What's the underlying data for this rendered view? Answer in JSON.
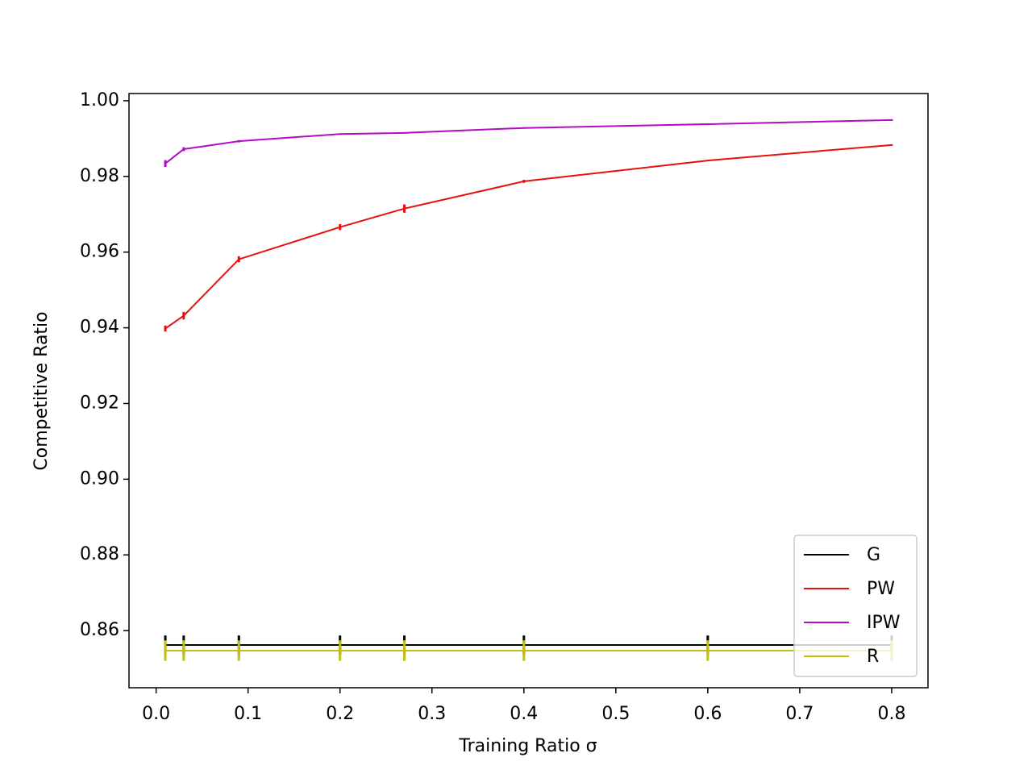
{
  "chart_data": {
    "type": "line",
    "x_label": "Training Ratio σ",
    "y_label": "Competitive Ratio",
    "x": [
      0.01,
      0.03,
      0.09,
      0.2,
      0.27,
      0.4,
      0.6,
      0.8
    ],
    "series": [
      {
        "name": "G",
        "color": "#000000",
        "values": [
          0.8562,
          0.8562,
          0.8562,
          0.8562,
          0.8562,
          0.8562,
          0.8562,
          0.8562
        ],
        "errors": [
          0.0025,
          0.0025,
          0.0025,
          0.0025,
          0.0025,
          0.0025,
          0.0025,
          0.0025
        ]
      },
      {
        "name": "PW",
        "color": "#e8100f",
        "values": [
          0.9398,
          0.9432,
          0.9581,
          0.9666,
          0.9715,
          0.9787,
          0.9842,
          0.9883
        ],
        "errors": [
          0.0008,
          0.001,
          0.0008,
          0.0008,
          0.0011,
          0.0004,
          0.0002,
          0.0002
        ]
      },
      {
        "name": "IPW",
        "color": "#b20cc8",
        "values": [
          0.9834,
          0.9872,
          0.9893,
          0.9912,
          0.9915,
          0.9928,
          0.9938,
          0.9949
        ],
        "errors": [
          0.0009,
          0.0005,
          0.0003,
          0.0002,
          0.0002,
          0.0002,
          0.0002,
          0.0002
        ]
      },
      {
        "name": "R",
        "color": "#c2c00f",
        "values": [
          0.8547,
          0.8547,
          0.8547,
          0.8547,
          0.8547,
          0.8547,
          0.8547,
          0.8547
        ],
        "errors": [
          0.0027,
          0.0027,
          0.0027,
          0.0027,
          0.0027,
          0.0027,
          0.0027,
          0.0027
        ]
      }
    ],
    "xlim": [
      -0.0295,
      0.8395
    ],
    "ylim": [
      0.8449,
      1.0019
    ],
    "xticks": [
      {
        "value": 0,
        "label": "0.0"
      },
      0.1,
      0.2,
      0.3,
      0.4,
      0.5,
      0.6,
      0.7,
      0.8
    ],
    "yticks": [
      0.86,
      0.88,
      {
        "value": 0.9,
        "label": "0.90"
      },
      0.92,
      0.94,
      0.96,
      0.98,
      {
        "value": 1,
        "label": "1.00"
      }
    ],
    "legend": "lower right",
    "grid": false
  }
}
